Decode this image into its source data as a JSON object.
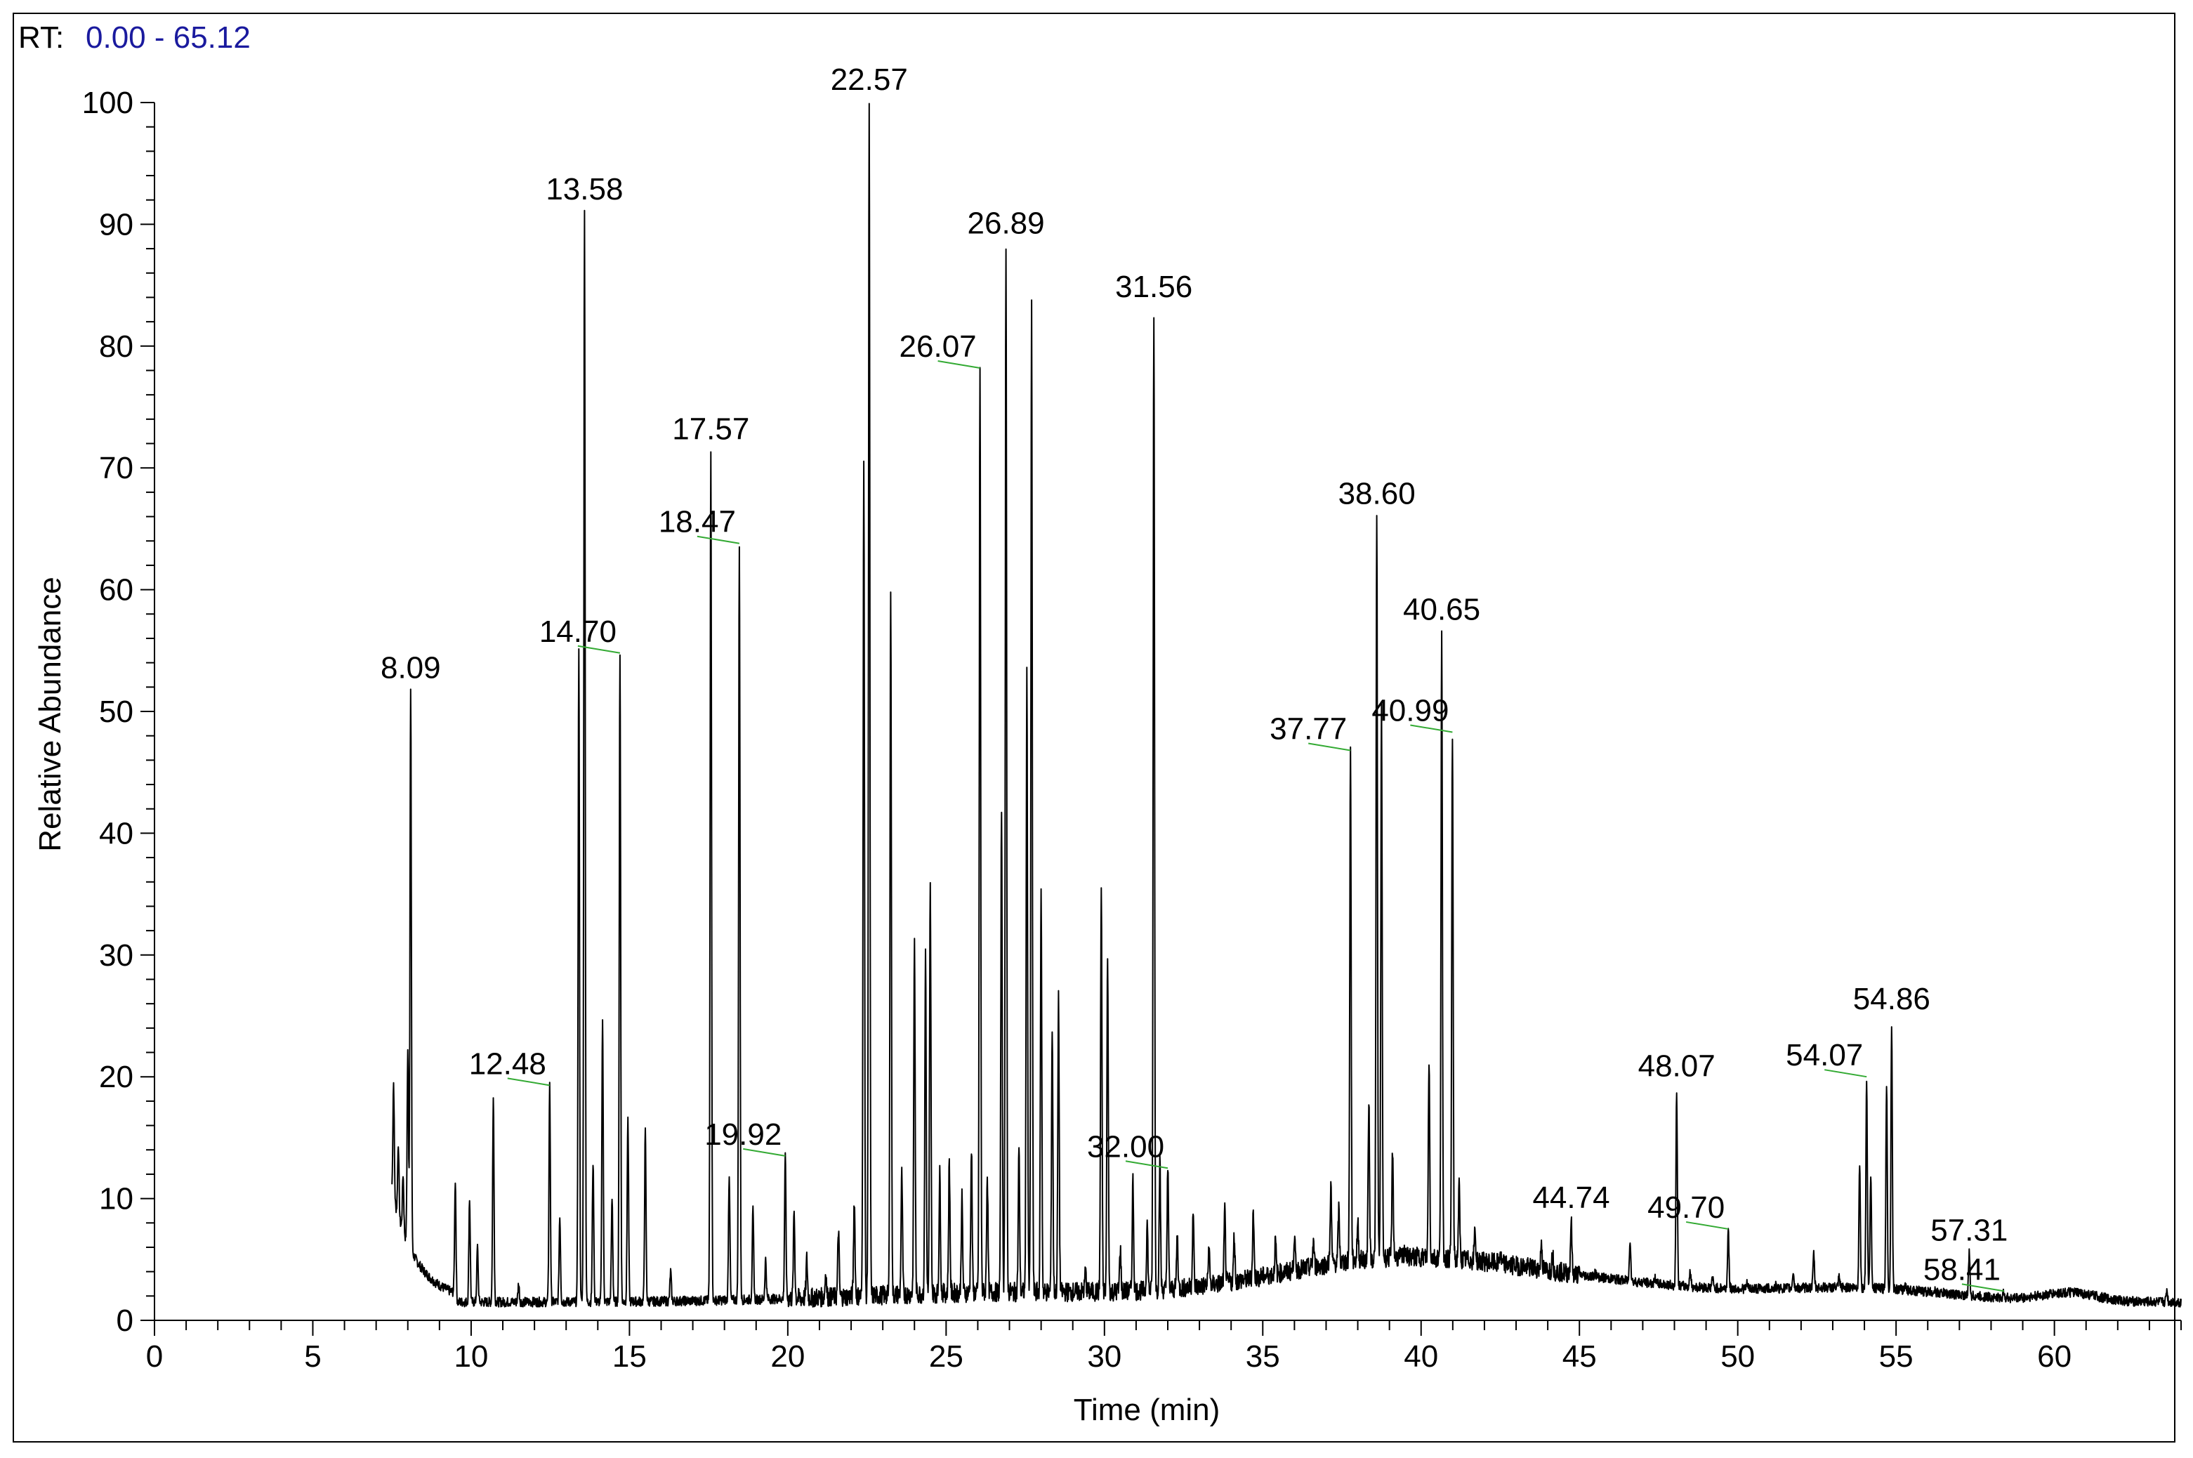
{
  "header": {
    "rt_prefix": "RT:",
    "rt_range": "0.00 - 65.12"
  },
  "colors": {
    "trace": "#000000",
    "label_leader": "#33aa33",
    "rt_range": "#1a1a9e",
    "axis": "#000000"
  },
  "chart_data": {
    "type": "line",
    "title": "",
    "xlabel": "Time (min)",
    "ylabel": "Relative Abundance",
    "xlim": [
      0,
      64
    ],
    "ylim": [
      0,
      100
    ],
    "x_ticks": [
      0,
      5,
      10,
      15,
      20,
      25,
      30,
      35,
      40,
      45,
      50,
      55,
      60
    ],
    "y_ticks": [
      0,
      10,
      20,
      30,
      40,
      50,
      60,
      70,
      80,
      90,
      100
    ],
    "grid": false,
    "legend": "none",
    "peaks": [
      {
        "x": 7.55,
        "y": 19.5
      },
      {
        "x": 7.7,
        "y": 14.5
      },
      {
        "x": 7.85,
        "y": 12
      },
      {
        "x": 8.0,
        "y": 22
      },
      {
        "x": 8.09,
        "y": 51.7,
        "label": "8.09"
      },
      {
        "x": 9.5,
        "y": 11.5
      },
      {
        "x": 9.95,
        "y": 10
      },
      {
        "x": 10.2,
        "y": 6
      },
      {
        "x": 10.7,
        "y": 18.2
      },
      {
        "x": 11.5,
        "y": 3
      },
      {
        "x": 12.48,
        "y": 19.3,
        "label": "12.48",
        "leader": true
      },
      {
        "x": 12.8,
        "y": 8.5
      },
      {
        "x": 13.4,
        "y": 55
      },
      {
        "x": 13.58,
        "y": 91.0,
        "label": "13.58"
      },
      {
        "x": 13.85,
        "y": 13
      },
      {
        "x": 14.15,
        "y": 24.8
      },
      {
        "x": 14.45,
        "y": 10
      },
      {
        "x": 14.7,
        "y": 54.8,
        "label": "14.70",
        "leader": true
      },
      {
        "x": 14.95,
        "y": 16.5
      },
      {
        "x": 15.5,
        "y": 15.5
      },
      {
        "x": 16.3,
        "y": 4
      },
      {
        "x": 17.57,
        "y": 71.3,
        "label": "17.57"
      },
      {
        "x": 18.15,
        "y": 12
      },
      {
        "x": 18.47,
        "y": 63.8,
        "label": "18.47",
        "leader": true
      },
      {
        "x": 18.9,
        "y": 9
      },
      {
        "x": 19.3,
        "y": 5
      },
      {
        "x": 19.92,
        "y": 13.5,
        "label": "19.92",
        "leader": true
      },
      {
        "x": 20.2,
        "y": 9
      },
      {
        "x": 20.6,
        "y": 5
      },
      {
        "x": 21.2,
        "y": 4
      },
      {
        "x": 21.6,
        "y": 7.5
      },
      {
        "x": 22.1,
        "y": 10
      },
      {
        "x": 22.4,
        "y": 70
      },
      {
        "x": 22.57,
        "y": 100,
        "label": "22.57"
      },
      {
        "x": 23.25,
        "y": 60
      },
      {
        "x": 23.6,
        "y": 12
      },
      {
        "x": 24.0,
        "y": 31
      },
      {
        "x": 24.35,
        "y": 30
      },
      {
        "x": 24.5,
        "y": 35.5
      },
      {
        "x": 24.8,
        "y": 12
      },
      {
        "x": 25.1,
        "y": 13
      },
      {
        "x": 25.5,
        "y": 10
      },
      {
        "x": 25.8,
        "y": 14
      },
      {
        "x": 26.07,
        "y": 78.2,
        "label": "26.07",
        "leader": true
      },
      {
        "x": 26.3,
        "y": 12
      },
      {
        "x": 26.75,
        "y": 42
      },
      {
        "x": 26.89,
        "y": 88.2,
        "label": "26.89"
      },
      {
        "x": 27.3,
        "y": 14
      },
      {
        "x": 27.55,
        "y": 53
      },
      {
        "x": 27.7,
        "y": 83
      },
      {
        "x": 28.0,
        "y": 35
      },
      {
        "x": 28.35,
        "y": 24
      },
      {
        "x": 28.55,
        "y": 26.3
      },
      {
        "x": 29.4,
        "y": 4
      },
      {
        "x": 29.9,
        "y": 35.5
      },
      {
        "x": 30.1,
        "y": 30
      },
      {
        "x": 30.5,
        "y": 6
      },
      {
        "x": 30.9,
        "y": 11.5
      },
      {
        "x": 31.35,
        "y": 8
      },
      {
        "x": 31.56,
        "y": 83.0,
        "label": "31.56"
      },
      {
        "x": 31.75,
        "y": 13
      },
      {
        "x": 32.0,
        "y": 12.5,
        "label": "32.00",
        "leader": true
      },
      {
        "x": 32.3,
        "y": 7
      },
      {
        "x": 32.8,
        "y": 9
      },
      {
        "x": 33.3,
        "y": 6
      },
      {
        "x": 33.8,
        "y": 9
      },
      {
        "x": 34.1,
        "y": 7
      },
      {
        "x": 34.7,
        "y": 9
      },
      {
        "x": 35.4,
        "y": 6.5
      },
      {
        "x": 36.0,
        "y": 7
      },
      {
        "x": 36.6,
        "y": 6.5
      },
      {
        "x": 37.15,
        "y": 11
      },
      {
        "x": 37.4,
        "y": 9
      },
      {
        "x": 37.77,
        "y": 46.8,
        "label": "37.77",
        "leader": true
      },
      {
        "x": 38.0,
        "y": 8
      },
      {
        "x": 38.35,
        "y": 18
      },
      {
        "x": 38.6,
        "y": 66.0,
        "label": "38.60"
      },
      {
        "x": 38.75,
        "y": 50
      },
      {
        "x": 39.1,
        "y": 14
      },
      {
        "x": 39.5,
        "y": 6
      },
      {
        "x": 40.25,
        "y": 21.5
      },
      {
        "x": 40.65,
        "y": 56.5,
        "label": "40.65"
      },
      {
        "x": 40.99,
        "y": 48.3,
        "label": "40.99",
        "leader": true
      },
      {
        "x": 41.2,
        "y": 11
      },
      {
        "x": 41.7,
        "y": 7.5
      },
      {
        "x": 42.5,
        "y": 5.5
      },
      {
        "x": 43.2,
        "y": 4.5
      },
      {
        "x": 43.8,
        "y": 6.5
      },
      {
        "x": 44.15,
        "y": 5.5
      },
      {
        "x": 44.74,
        "y": 8.2,
        "label": "44.74"
      },
      {
        "x": 45.5,
        "y": 4
      },
      {
        "x": 46.6,
        "y": 6.7
      },
      {
        "x": 47.4,
        "y": 3.5
      },
      {
        "x": 48.07,
        "y": 19.0,
        "label": "48.07"
      },
      {
        "x": 48.5,
        "y": 4
      },
      {
        "x": 49.2,
        "y": 3.5
      },
      {
        "x": 49.7,
        "y": 7.5,
        "label": "49.70",
        "leader": true
      },
      {
        "x": 50.3,
        "y": 3
      },
      {
        "x": 51.2,
        "y": 2.8
      },
      {
        "x": 51.75,
        "y": 4
      },
      {
        "x": 52.4,
        "y": 5.5
      },
      {
        "x": 53.2,
        "y": 3.5
      },
      {
        "x": 53.85,
        "y": 13
      },
      {
        "x": 54.07,
        "y": 20.0,
        "label": "54.07",
        "leader": true
      },
      {
        "x": 54.2,
        "y": 12
      },
      {
        "x": 54.7,
        "y": 19.5
      },
      {
        "x": 54.86,
        "y": 24.5,
        "label": "54.86"
      },
      {
        "x": 55.3,
        "y": 3
      },
      {
        "x": 56.2,
        "y": 2.5
      },
      {
        "x": 57.31,
        "y": 5.5,
        "label": "57.31"
      },
      {
        "x": 58.41,
        "y": 2.4,
        "label": "58.41",
        "leader": true
      },
      {
        "x": 60.7,
        "y": 2.3
      },
      {
        "x": 63.55,
        "y": 2.5
      }
    ]
  }
}
